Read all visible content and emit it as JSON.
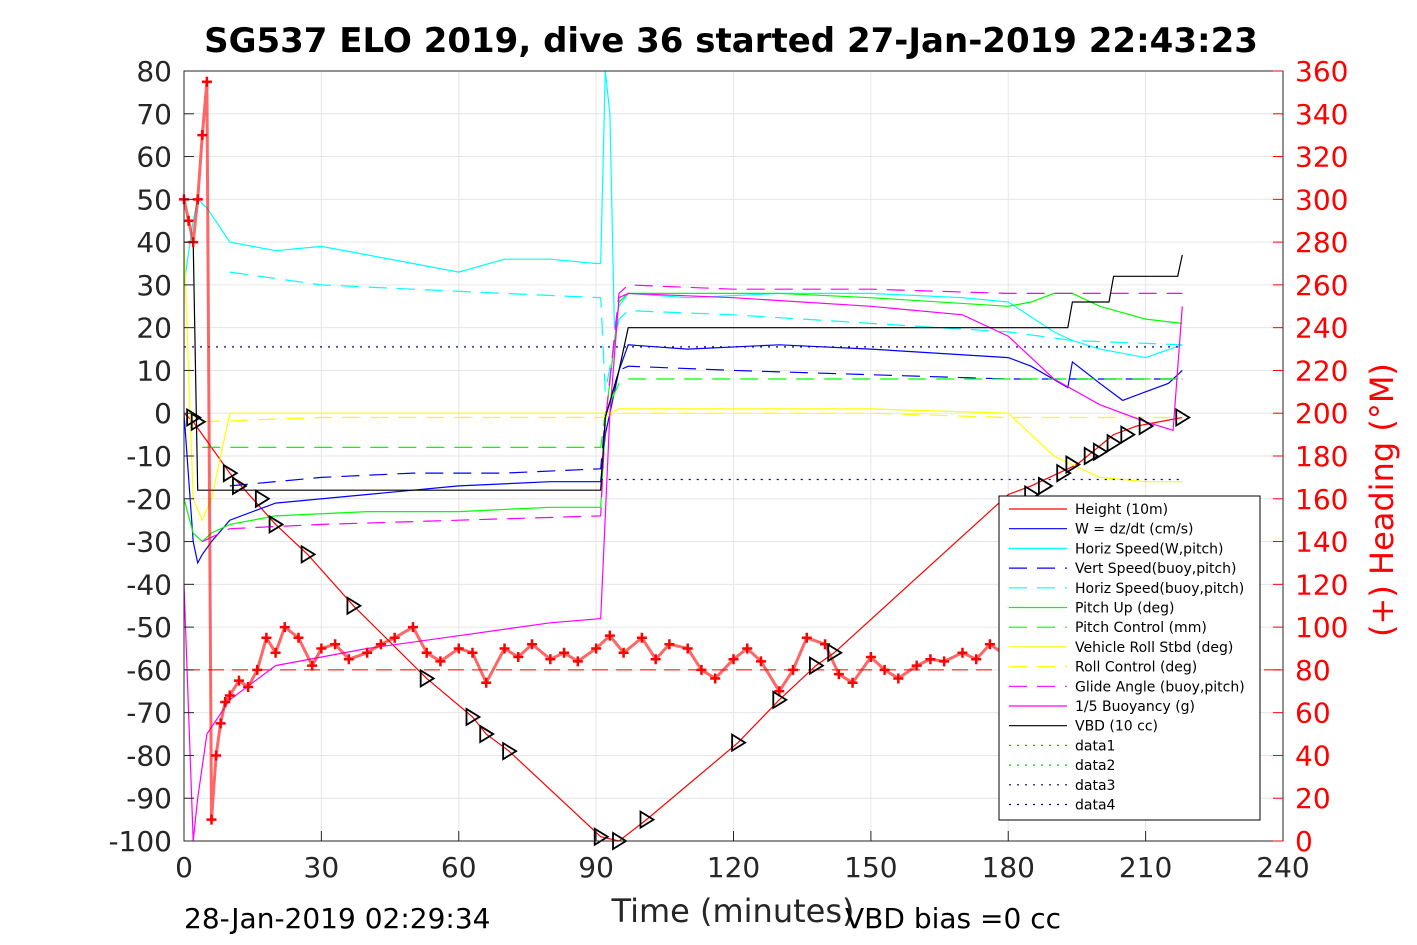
{
  "chart_data": {
    "type": "line",
    "title": "SG537 ELO 2019, dive 36 started 27-Jan-2019 22:43:23",
    "xlabel": "Time (minutes)",
    "ylabel_right": "(+) Heading (°M)",
    "xlim": [
      0,
      240
    ],
    "ylim": [
      -100,
      80
    ],
    "y2lim": [
      0,
      360
    ],
    "xticks": [
      "0",
      "30",
      "60",
      "90",
      "120",
      "150",
      "180",
      "210",
      "240"
    ],
    "yticks": [
      "80",
      "70",
      "60",
      "50",
      "40",
      "30",
      "20",
      "10",
      "0",
      "-10",
      "-20",
      "-30",
      "-40",
      "-50",
      "-60",
      "-70",
      "-80",
      "-90",
      "-100"
    ],
    "y2ticks": [
      "360",
      "340",
      "320",
      "300",
      "280",
      "260",
      "240",
      "220",
      "200",
      "180",
      "160",
      "140",
      "120",
      "100",
      "80",
      "60",
      "40",
      "20",
      "0"
    ],
    "grid": true,
    "legend_position": "lower-right",
    "footer_left": "28-Jan-2019 02:29:34",
    "footer_right": "VBD bias =0 cc",
    "series": [
      {
        "name": "Height (10m)",
        "color": "#ff0000",
        "style": "solid",
        "x": [
          0,
          2,
          10,
          20,
          27,
          37,
          53,
          63,
          66,
          71,
          91,
          95,
          101,
          121,
          130,
          138,
          142,
          180,
          185,
          195,
          203,
          208,
          218
        ],
        "y": [
          0,
          -2,
          -14,
          -26,
          -33,
          -45,
          -62,
          -71,
          -75,
          -79,
          -99,
          -100,
          -95,
          -77,
          -67,
          -59,
          -56,
          -19,
          -17,
          -12,
          -5,
          -3,
          -1
        ]
      },
      {
        "name": "W = dz/dt (cm/s)",
        "color": "#0000ff",
        "style": "solid",
        "x": [
          0,
          2,
          3,
          4,
          6,
          10,
          20,
          40,
          60,
          80,
          91,
          92,
          95,
          97,
          110,
          130,
          150,
          180,
          185,
          193,
          194,
          200,
          205,
          210,
          215,
          218
        ],
        "y": [
          0,
          -30,
          -35,
          -33,
          -30,
          -25,
          -21,
          -19,
          -17,
          -16,
          -16,
          -5,
          10,
          16,
          15,
          16,
          15,
          13,
          11,
          6,
          12,
          7,
          3,
          5,
          7,
          10
        ]
      },
      {
        "name": "Horiz Speed(W,pitch)",
        "color": "#00ffff",
        "style": "solid",
        "x": [
          0,
          2,
          3,
          5,
          10,
          20,
          30,
          40,
          50,
          60,
          70,
          80,
          90,
          91,
          92,
          93,
          94,
          95,
          97,
          110,
          130,
          150,
          170,
          180,
          190,
          194,
          200,
          210,
          218
        ],
        "y": [
          30,
          45,
          50,
          48,
          40,
          38,
          39,
          37,
          35,
          33,
          36,
          36,
          35,
          35,
          80,
          70,
          20,
          25,
          28,
          27,
          28,
          28,
          27,
          26,
          19,
          17,
          15,
          13,
          16
        ]
      },
      {
        "name": "Vert Speed(buoy,pitch)",
        "color": "#0000ff",
        "style": "dash",
        "x": [
          10,
          30,
          50,
          70,
          91,
          92,
          95,
          97,
          120,
          150,
          180,
          194,
          218
        ],
        "y": [
          -17,
          -15,
          -14,
          -14,
          -13,
          -1,
          10,
          11,
          10,
          9,
          8,
          8,
          8
        ]
      },
      {
        "name": "Horiz Speed(buoy,pitch)",
        "color": "#00ffff",
        "style": "dash",
        "x": [
          10,
          30,
          50,
          70,
          91,
          92,
          95,
          97,
          120,
          150,
          180,
          194,
          218
        ],
        "y": [
          33,
          30,
          29,
          28,
          27,
          5,
          22,
          24,
          23,
          21,
          19,
          17,
          16
        ]
      },
      {
        "name": "Pitch Up (deg)",
        "color": "#00ff00",
        "style": "solid",
        "x": [
          0,
          2,
          4,
          6,
          10,
          20,
          40,
          60,
          80,
          91,
          92,
          95,
          97,
          110,
          130,
          150,
          180,
          185,
          190,
          194,
          200,
          210,
          218
        ],
        "y": [
          -20,
          -28,
          -30,
          -28,
          -26,
          -24,
          -23,
          -23,
          -22,
          -22,
          -2,
          26,
          28,
          28,
          28,
          27,
          25,
          26,
          28,
          28,
          25,
          22,
          21
        ]
      },
      {
        "name": "Pitch Control (mm)",
        "color": "#00ff00",
        "style": "dash",
        "x": [
          4,
          30,
          60,
          91,
          92,
          95,
          97,
          218
        ],
        "y": [
          -8,
          -8,
          -8,
          -8,
          0,
          7,
          8,
          8
        ]
      },
      {
        "name": "Vehicle Roll Stbd (deg)",
        "color": "#ffff00",
        "style": "solid",
        "x": [
          0,
          2,
          4,
          6,
          10,
          20,
          40,
          60,
          80,
          91,
          93,
          95,
          97,
          120,
          150,
          180,
          185,
          190,
          200,
          210,
          218
        ],
        "y": [
          40,
          -20,
          -25,
          -20,
          0,
          0,
          0,
          0,
          0,
          0,
          0,
          1,
          1,
          1,
          1,
          0,
          -5,
          -10,
          -15,
          -16,
          -16
        ]
      },
      {
        "name": "Roll Control (deg)",
        "color": "#ffff00",
        "style": "dash",
        "x": [
          4,
          30,
          60,
          91,
          95,
          120,
          150,
          180,
          218
        ],
        "y": [
          -2,
          -1,
          -1,
          -1,
          0,
          0,
          0,
          -1,
          -1
        ]
      },
      {
        "name": "Glide Angle (buoy,pitch)",
        "color": "#ff00ff",
        "style": "dash",
        "x": [
          4,
          10,
          30,
          60,
          91,
          92,
          95,
          97,
          120,
          150,
          180,
          200,
          218
        ],
        "y": [
          -30,
          -27,
          -26,
          -25,
          -24,
          -2,
          28,
          30,
          29,
          29,
          28,
          28,
          28
        ]
      },
      {
        "name": "1/5 Buoyancy (g)",
        "color": "#ff00ff",
        "style": "solid",
        "x": [
          0,
          1,
          2,
          3,
          5,
          10,
          20,
          40,
          60,
          80,
          91,
          93,
          95,
          97,
          120,
          150,
          170,
          180,
          190,
          200,
          210,
          216,
          218
        ],
        "y": [
          -40,
          -70,
          -100,
          -90,
          -75,
          -67,
          -59,
          -55,
          -52,
          -49,
          -48,
          0,
          27,
          28,
          27,
          25,
          23,
          18,
          8,
          2,
          -2,
          -4,
          25
        ]
      },
      {
        "name": "VBD (10 cc)",
        "color": "#000000",
        "style": "solid",
        "x": [
          0,
          2,
          3,
          91,
          92,
          95,
          97,
          180,
          193,
          194,
          202,
          203,
          217,
          218
        ],
        "y": [
          40,
          40,
          -18,
          -18,
          -1,
          10,
          20,
          20,
          20,
          26,
          26,
          32,
          32,
          37
        ]
      },
      {
        "name": "data1",
        "color": "#00c800",
        "style": "dot",
        "x": [],
        "y": []
      },
      {
        "name": "data2",
        "color": "#00c800",
        "style": "dot",
        "x": [],
        "y": []
      },
      {
        "name": "data3",
        "color": "#00008b",
        "style": "dot",
        "x": [
          0,
          218
        ],
        "y": [
          15.5,
          15.5
        ]
      },
      {
        "name": "data4",
        "color": "#00008b",
        "style": "dot",
        "x": [
          91,
          218
        ],
        "y": [
          -15.5,
          -15.5
        ]
      }
    ],
    "heading_series": {
      "color": "#ff0000",
      "marker": "+",
      "x": [
        0,
        1,
        2,
        3,
        4,
        5,
        6,
        7,
        8,
        9,
        10,
        12,
        14,
        16,
        18,
        20,
        22,
        25,
        28,
        30,
        33,
        36,
        40,
        43,
        46,
        50,
        53,
        56,
        60,
        63,
        66,
        70,
        73,
        76,
        80,
        83,
        86,
        90,
        93,
        96,
        100,
        103,
        106,
        110,
        113,
        116,
        120,
        123,
        126,
        130,
        133,
        136,
        140,
        143,
        146,
        150,
        153,
        156,
        160,
        163,
        166,
        170,
        173,
        176,
        180
      ],
      "y": [
        300,
        290,
        280,
        300,
        330,
        355,
        10,
        40,
        55,
        65,
        68,
        75,
        72,
        80,
        95,
        88,
        100,
        95,
        82,
        90,
        92,
        85,
        88,
        92,
        95,
        100,
        88,
        84,
        90,
        88,
        74,
        90,
        86,
        92,
        85,
        88,
        84,
        90,
        96,
        88,
        95,
        85,
        92,
        90,
        80,
        76,
        85,
        90,
        84,
        70,
        80,
        95,
        92,
        78,
        74,
        86,
        80,
        76,
        82,
        85,
        84,
        88,
        85,
        92,
        86
      ]
    },
    "reference_line": {
      "color": "#ff0000",
      "style": "dash",
      "y": -60
    },
    "markers": {
      "symbol": "triangle",
      "color": "#000000",
      "x": [
        2,
        3,
        10,
        12,
        17,
        20,
        27,
        37,
        53,
        63,
        66,
        71,
        91,
        95,
        101,
        121,
        130,
        138,
        142,
        185,
        188,
        192,
        194,
        198,
        200,
        203,
        206,
        210,
        218
      ],
      "y": [
        -1,
        -2,
        -14,
        -17,
        -20,
        -26,
        -33,
        -45,
        -62,
        -71,
        -75,
        -79,
        -99,
        -100,
        -95,
        -77,
        -67,
        -59,
        -56,
        -19,
        -17,
        -14,
        -12,
        -10,
        -9,
        -7,
        -5,
        -3,
        -1
      ]
    }
  }
}
